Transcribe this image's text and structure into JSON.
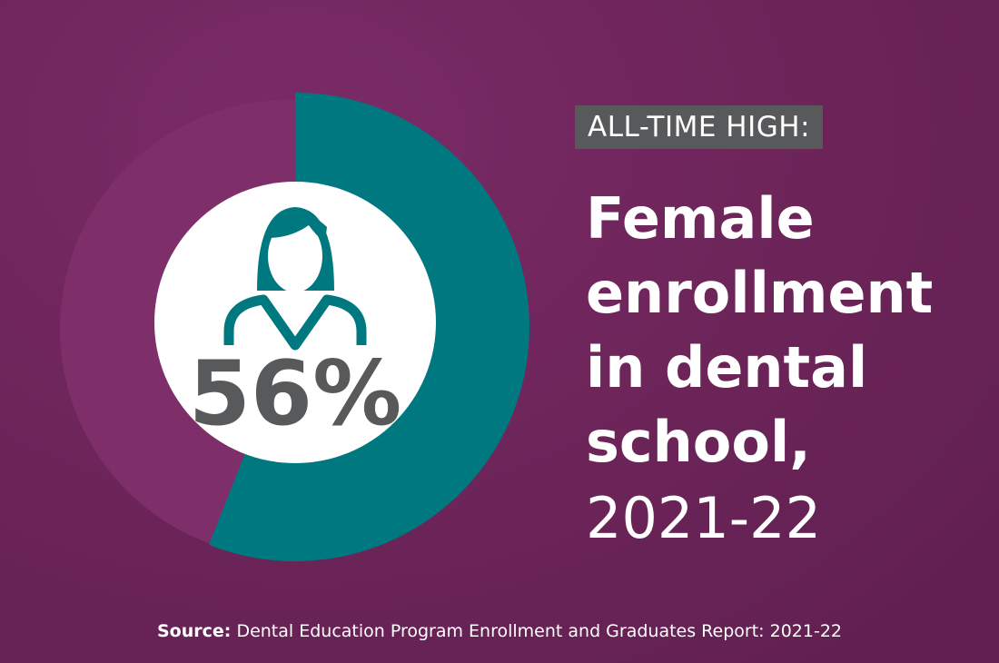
{
  "chart_data": {
    "type": "pie",
    "values": [
      56
    ],
    "value_labels": [
      "56%"
    ],
    "color": "#00787f",
    "annotation": "ALL-TIME HIGH:",
    "title": "Female enrollment in dental school,",
    "subtitle": "2021-22",
    "source_label": "Source:",
    "source": "Dental Education Program Enrollment and Graduates Report: 2021-22"
  }
}
